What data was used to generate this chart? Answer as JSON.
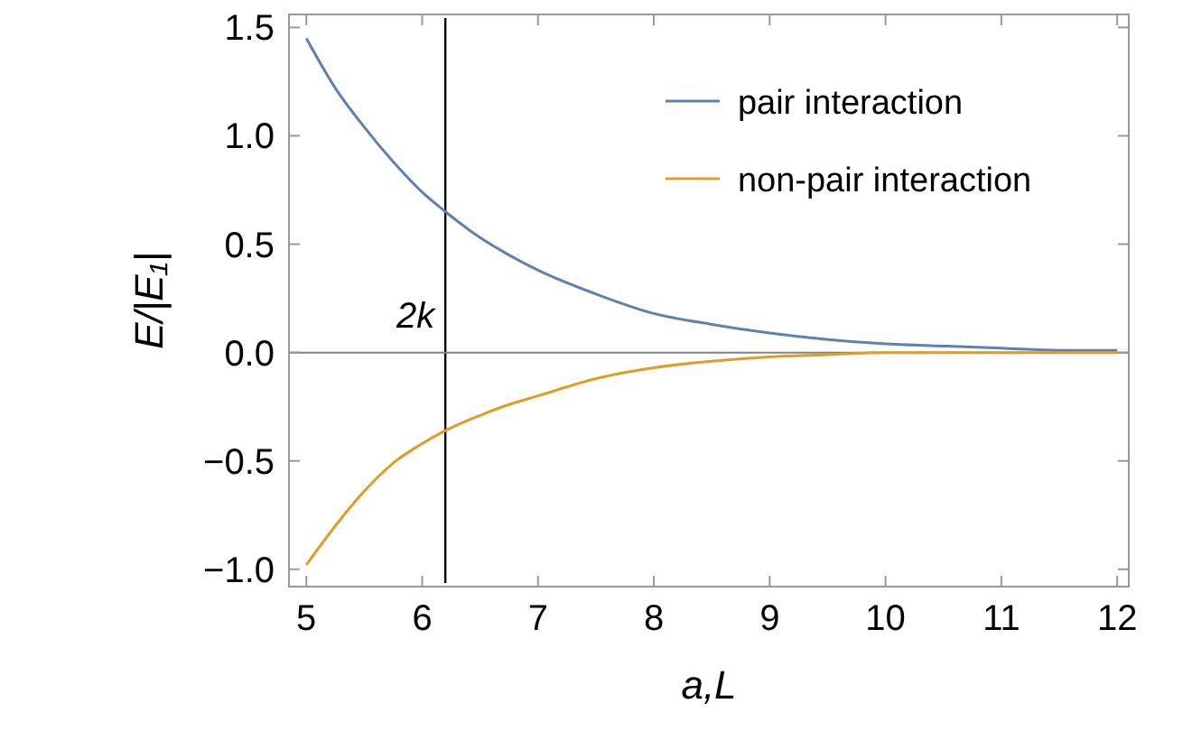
{
  "chart_data": {
    "type": "line",
    "xlabel": "a,L",
    "ylabel": "E/|E₁|",
    "x": [
      5,
      5.25,
      5.5,
      5.75,
      6,
      6.2,
      6.5,
      6.75,
      7,
      7.5,
      8,
      8.5,
      9,
      9.5,
      10,
      10.5,
      11,
      11.5,
      12
    ],
    "series": [
      {
        "name": "pair interaction",
        "color": "#5e81b5",
        "values": [
          1.45,
          1.22,
          1.04,
          0.88,
          0.74,
          0.65,
          0.53,
          0.45,
          0.38,
          0.27,
          0.18,
          0.13,
          0.09,
          0.06,
          0.04,
          0.03,
          0.02,
          0.01,
          0.01
        ]
      },
      {
        "name": "non-pair interaction",
        "color": "#e19c24",
        "values": [
          -0.98,
          -0.8,
          -0.64,
          -0.51,
          -0.42,
          -0.36,
          -0.29,
          -0.24,
          -0.2,
          -0.12,
          -0.07,
          -0.04,
          -0.02,
          -0.01,
          0,
          0,
          0,
          0,
          0
        ]
      }
    ],
    "xlim": [
      4.85,
      12.1
    ],
    "ylim": [
      -1.08,
      1.56
    ],
    "xticks": [
      5,
      6,
      7,
      8,
      9,
      10,
      11,
      12
    ],
    "yticks": [
      {
        "value": -1,
        "label": "−1.0"
      },
      {
        "value": -0.5,
        "label": "−0.5"
      },
      {
        "value": 0,
        "label": "0.0"
      },
      {
        "value": 0.5,
        "label": "0.5"
      },
      {
        "value": 1,
        "label": "1.0"
      },
      {
        "value": 1.5,
        "label": "1.5"
      }
    ],
    "ref_lines": [
      {
        "axis": "x",
        "value": 6.2,
        "label": "2k",
        "color": "#000000"
      },
      {
        "axis": "y",
        "value": 0,
        "color": "#808080"
      }
    ],
    "legend": "top right",
    "grid": false,
    "marker": "none",
    "line_style": "solid"
  }
}
